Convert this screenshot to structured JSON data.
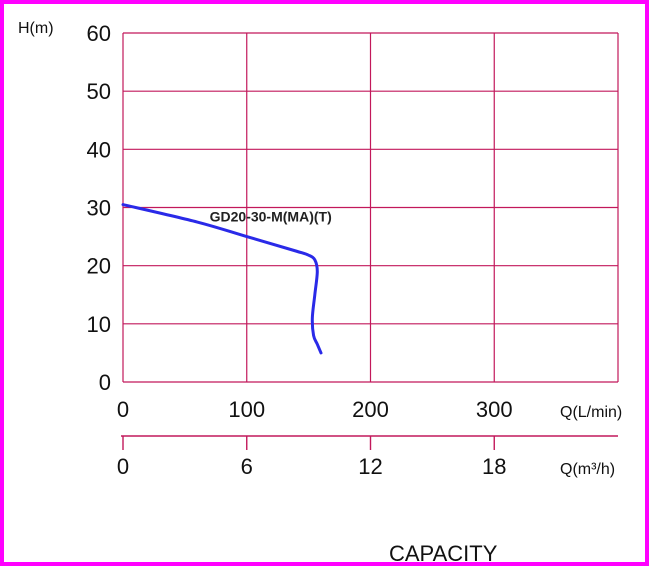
{
  "colors": {
    "frame": "#ff00ff",
    "grid": "#c2185b",
    "curve": "#2a2ae8",
    "text": "#111111"
  },
  "chart_data": {
    "type": "line",
    "ylabel": "H(m)",
    "xlabel": "Q(L/min)",
    "xlabel2": "Q(m³/h)",
    "footer": "CAPACITY",
    "xlim": [
      0,
      400
    ],
    "ylim": [
      0,
      60
    ],
    "yticks": [
      "0",
      "10",
      "20",
      "30",
      "40",
      "50",
      "60"
    ],
    "xticks": [
      "0",
      "100",
      "200",
      "300"
    ],
    "xticks2": [
      "0",
      "6",
      "12",
      "18"
    ],
    "grid": true,
    "series": [
      {
        "name": "GD20-30-M(MA)(T)",
        "x": [
          0,
          60,
          100,
          140,
          150,
          155,
          157,
          155,
          153,
          154,
          157,
          160
        ],
        "y": [
          30.5,
          27.5,
          25,
          22.5,
          21.8,
          21,
          19,
          15,
          11,
          8,
          6.5,
          5
        ]
      }
    ]
  }
}
